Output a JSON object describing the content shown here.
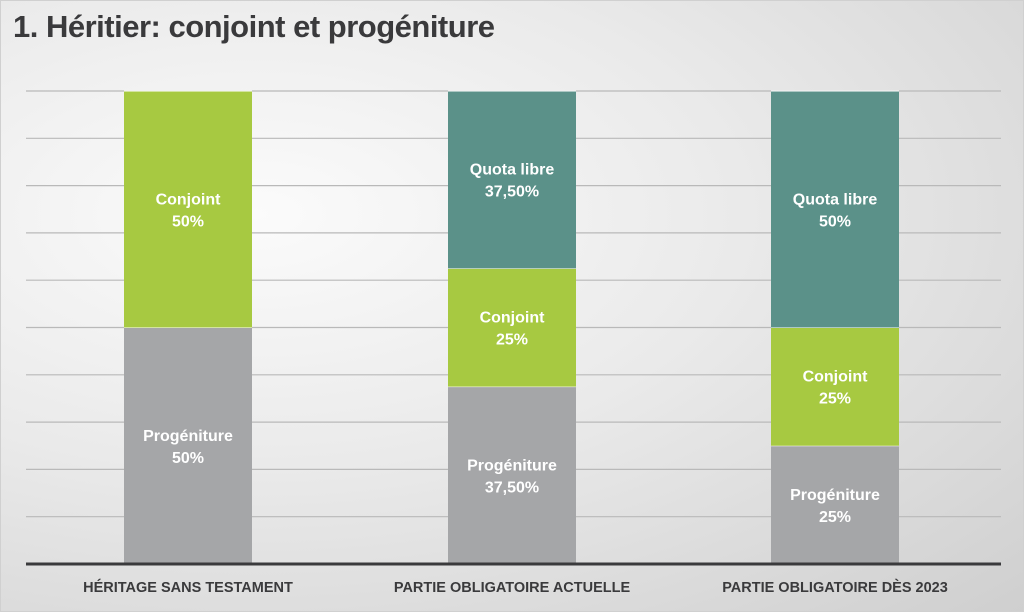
{
  "chart_data": {
    "type": "bar",
    "stacked": true,
    "title": "1. Héritier: conjoint et progéniture",
    "categories": [
      "HÉRITAGE SANS TESTAMENT",
      "PARTIE OBLIGATOIRE ACTUELLE",
      "PARTIE OBLIGATOIRE DÈS 2023"
    ],
    "series": [
      {
        "name": "Progéniture",
        "color": "#a5a6a8",
        "values": [
          50,
          37.5,
          25
        ],
        "labels": [
          "Progéniture\n50%",
          "Progéniture\n37,50%",
          "Progéniture\n25%"
        ]
      },
      {
        "name": "Conjoint",
        "color": "#a7c941",
        "values": [
          50,
          25,
          25
        ],
        "labels": [
          "Conjoint\n50%",
          "Conjoint\n25%",
          "Conjoint\n25%"
        ]
      },
      {
        "name": "Quota libre",
        "color": "#5b9189",
        "values": [
          0,
          37.5,
          50
        ],
        "labels": [
          "",
          "Quota libre\n37,50%",
          "Quota libre\n50%"
        ]
      }
    ],
    "ylim": [
      0,
      100
    ],
    "grid": true,
    "grid_step": 10,
    "xlabel": "",
    "ylabel": ""
  }
}
